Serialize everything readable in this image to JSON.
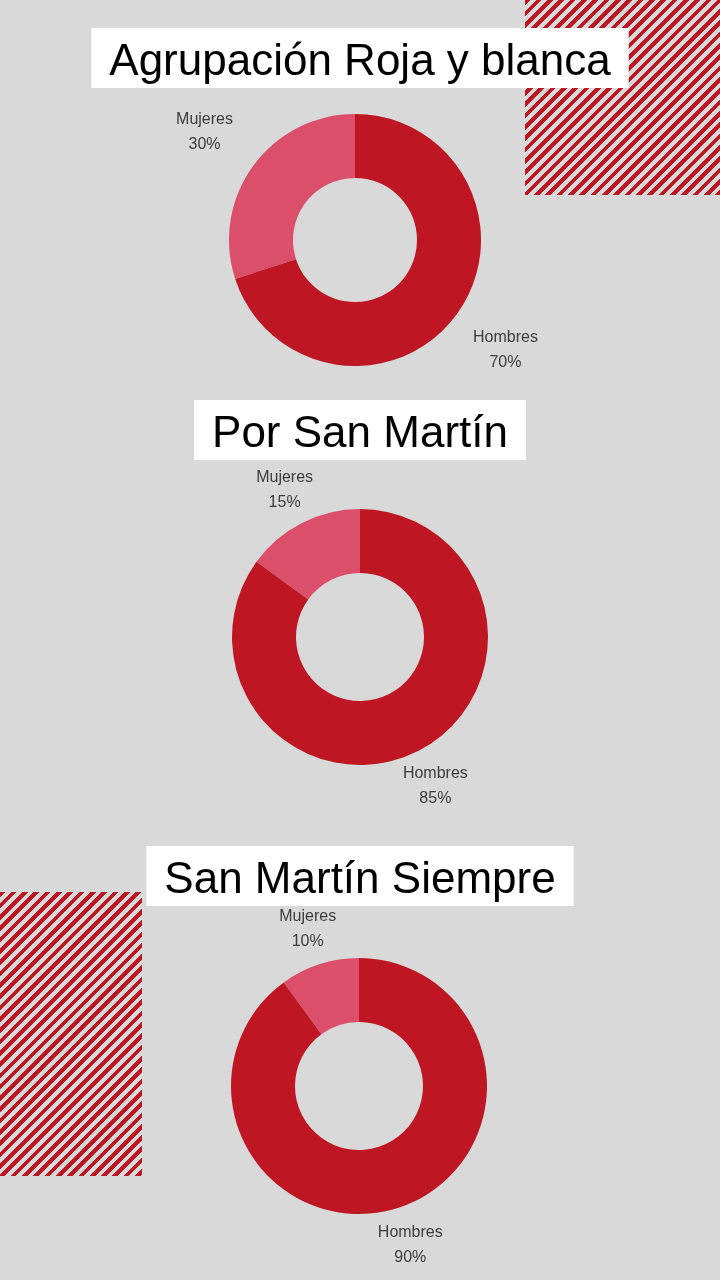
{
  "chart_data": [
    {
      "type": "donut",
      "title": "Agrupación Roja y blanca",
      "categories": [
        "Mujeres",
        "Hombres"
      ],
      "values": [
        30,
        70
      ],
      "colors": [
        "#dc4f6a",
        "#be1622"
      ],
      "value_labels": [
        "30%",
        "70%"
      ]
    },
    {
      "type": "donut",
      "title": "Por San Martín",
      "categories": [
        "Mujeres",
        "Hombres"
      ],
      "values": [
        15,
        85
      ],
      "colors": [
        "#dc4f6a",
        "#be1622"
      ],
      "value_labels": [
        "15%",
        "85%"
      ]
    },
    {
      "type": "donut",
      "title": "San Martín Siempre",
      "categories": [
        "Mujeres",
        "Hombres"
      ],
      "values": [
        10,
        90
      ],
      "colors": [
        "#dc4f6a",
        "#be1622"
      ],
      "value_labels": [
        "10%",
        "90%"
      ]
    }
  ]
}
